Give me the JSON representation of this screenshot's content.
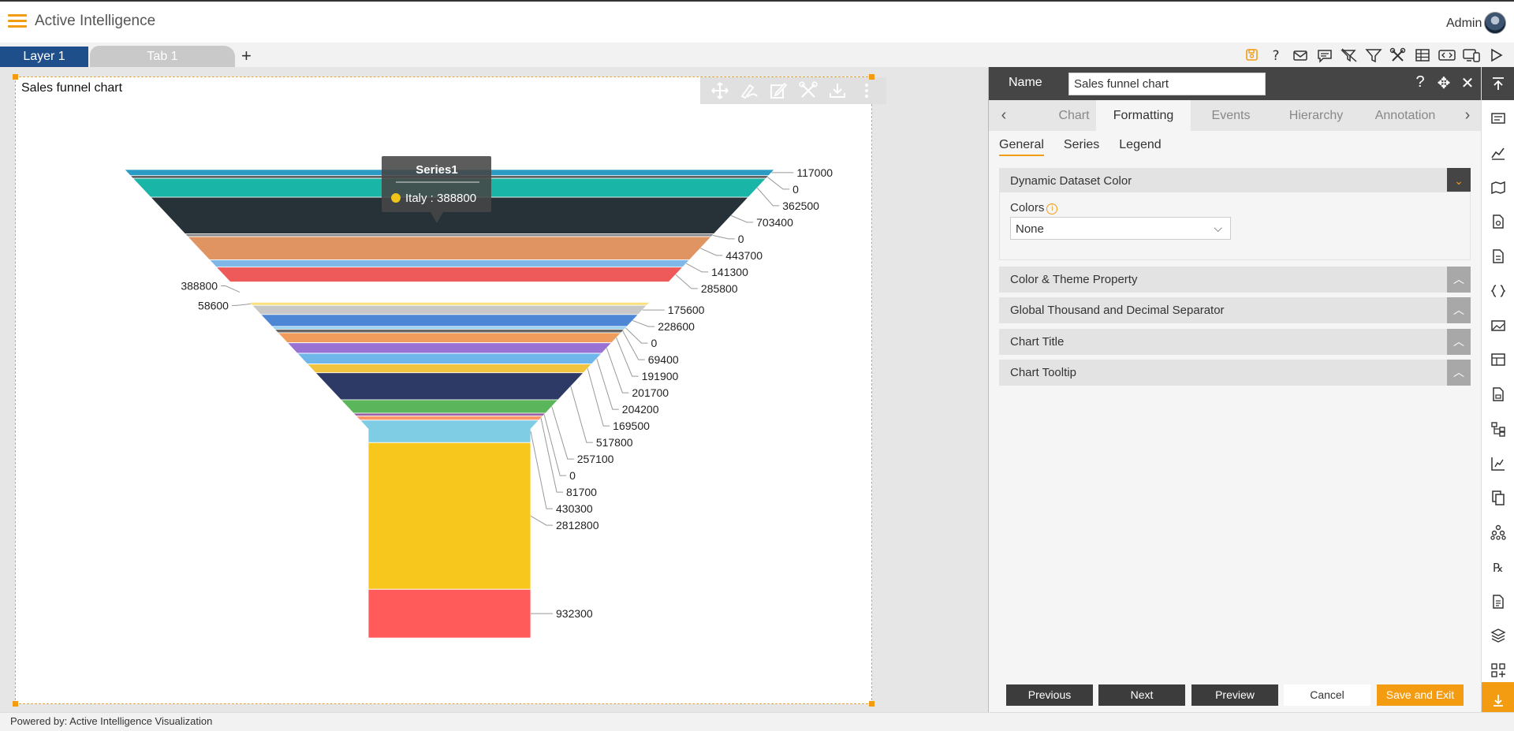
{
  "app": {
    "title": "Active Intelligence",
    "user": "Admin"
  },
  "tabs": {
    "layer": "Layer 1",
    "tab": "Tab 1",
    "add": "+"
  },
  "toolbar_icons": [
    "save-icon",
    "help-icon",
    "mail-icon",
    "comment-icon",
    "clear-filter-icon",
    "filter-icon",
    "tools-icon",
    "table-icon",
    "embed-icon",
    "devices-icon",
    "play-icon"
  ],
  "chart_panel": {
    "title": "Sales funnel chart",
    "toolbar_icons": [
      "move-icon",
      "draw-icon",
      "edit-icon",
      "settings-icon",
      "download-icon",
      "more-icon"
    ]
  },
  "chart_data": {
    "type": "funnel",
    "title": "Sales funnel chart",
    "series_name": "Series1",
    "values": [
      117000,
      0,
      362500,
      703400,
      0,
      443700,
      141300,
      285800,
      388800,
      58600,
      175600,
      228600,
      0,
      69400,
      191900,
      201700,
      204200,
      169500,
      517800,
      257100,
      0,
      81700,
      430300,
      2812800,
      932300
    ],
    "colors": [
      "#2a9bc4",
      "#555555",
      "#19b5a6",
      "#263238",
      "#888888",
      "#e09462",
      "#7fb8e6",
      "#ee5a5a",
      "#ffffff",
      "#f8e07e",
      "#c8c8c8",
      "#4e86d6",
      "#8fcff0",
      "#666666",
      "#ef9c5c",
      "#9a72d4",
      "#6fb6ea",
      "#f1c43f",
      "#2e3a66",
      "#5bb55b",
      "#9b5ea4",
      "#ff966a",
      "#7fcde4",
      "#f7c71d",
      "#ff5b5b"
    ],
    "tooltip": {
      "series": "Series1",
      "label": "Italy : 388800",
      "color": "#f0c419"
    }
  },
  "side_panel": {
    "name_label": "Name",
    "name_value": "Sales funnel chart",
    "tabs": [
      "Chart",
      "Formatting",
      "Events",
      "Hierarchy",
      "Annotation"
    ],
    "active_tab": "Formatting",
    "sub_tabs": [
      "General",
      "Series",
      "Legend"
    ],
    "active_sub_tab": "General",
    "sections": [
      {
        "title": "Dynamic Dataset Color",
        "expanded": true
      },
      {
        "title": "Color & Theme Property",
        "expanded": false
      },
      {
        "title": "Global Thousand and Decimal Separator",
        "expanded": false
      },
      {
        "title": "Chart Title",
        "expanded": false
      },
      {
        "title": "Chart Tooltip",
        "expanded": false
      }
    ],
    "colors_label": "Colors",
    "colors_value": "None",
    "buttons": {
      "previous": "Previous",
      "next": "Next",
      "preview": "Preview",
      "cancel": "Cancel",
      "save_exit": "Save and Exit"
    }
  },
  "right_rail_icons": [
    "collapse-up-icon",
    "card-icon",
    "chart-icon",
    "map-icon",
    "document-gear-icon",
    "document-icon",
    "code-icon",
    "image-icon",
    "layout-icon",
    "report-icon",
    "tree-icon",
    "bar-chart-icon",
    "copy-icon",
    "hierarchy-icon",
    "formula-icon",
    "notes-icon",
    "layers-icon",
    "grid-add-icon",
    "download-icon"
  ],
  "status": {
    "powered_by": "Powered by: Active Intelligence Visualization"
  }
}
